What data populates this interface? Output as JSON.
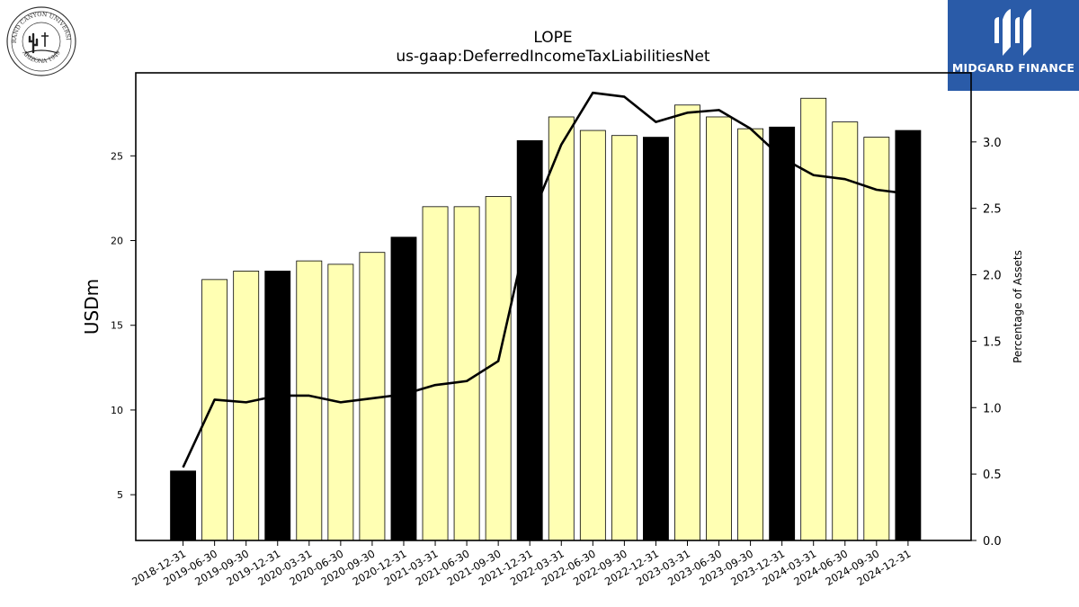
{
  "logo_left": {
    "text_top": "GRAND CANYON UNIVERSITY",
    "text_bottom": "ARIZONA 1949"
  },
  "logo_right": {
    "brand": "MIDGARD FINANCE",
    "accent": "#2a5ba8"
  },
  "chart_data": {
    "type": "bar",
    "title": "LOPE",
    "subtitle": "us-gaap:DeferredIncomeTaxLiabilitiesNet",
    "ylabel": "USDm",
    "y2label": "Percentage of Assets",
    "ylim": [
      2.3,
      29.9
    ],
    "y2lim": [
      0.0,
      3.52
    ],
    "yticks": [
      5,
      10,
      15,
      20,
      25
    ],
    "y2ticks": [
      "0.0",
      "0.5",
      "1.0",
      "1.5",
      "2.0",
      "2.5",
      "3.0"
    ],
    "categories": [
      "2018-12-31",
      "2019-06-30",
      "2019-09-30",
      "2019-12-31",
      "2020-03-31",
      "2020-06-30",
      "2020-09-30",
      "2020-12-31",
      "2021-03-31",
      "2021-06-30",
      "2021-09-30",
      "2021-12-31",
      "2022-03-31",
      "2022-06-30",
      "2022-09-30",
      "2022-12-31",
      "2023-03-31",
      "2023-06-30",
      "2023-09-30",
      "2023-12-31",
      "2024-03-31",
      "2024-06-30",
      "2024-09-30",
      "2024-12-31"
    ],
    "series": [
      {
        "type": "bar",
        "values": [
          6.4,
          17.7,
          18.2,
          18.2,
          18.8,
          18.6,
          19.3,
          20.2,
          22.0,
          22.0,
          22.6,
          25.9,
          27.3,
          26.5,
          26.2,
          26.1,
          28.0,
          27.3,
          26.6,
          26.7,
          28.4,
          27.0,
          26.1,
          26.5
        ]
      },
      {
        "type": "line",
        "axis": "right",
        "values": [
          0.55,
          1.06,
          1.04,
          1.09,
          1.09,
          1.04,
          1.07,
          1.1,
          1.17,
          1.2,
          1.35,
          2.4,
          2.98,
          3.37,
          3.34,
          3.15,
          3.22,
          3.24,
          3.1,
          2.88,
          2.75,
          2.72,
          2.64,
          2.61
        ]
      }
    ],
    "colors": {
      "quarter": "#ffffb3",
      "year_end": "#000000",
      "line": "#000000"
    },
    "year_end_indices": [
      0,
      3,
      7,
      11,
      15,
      19,
      23
    ]
  }
}
